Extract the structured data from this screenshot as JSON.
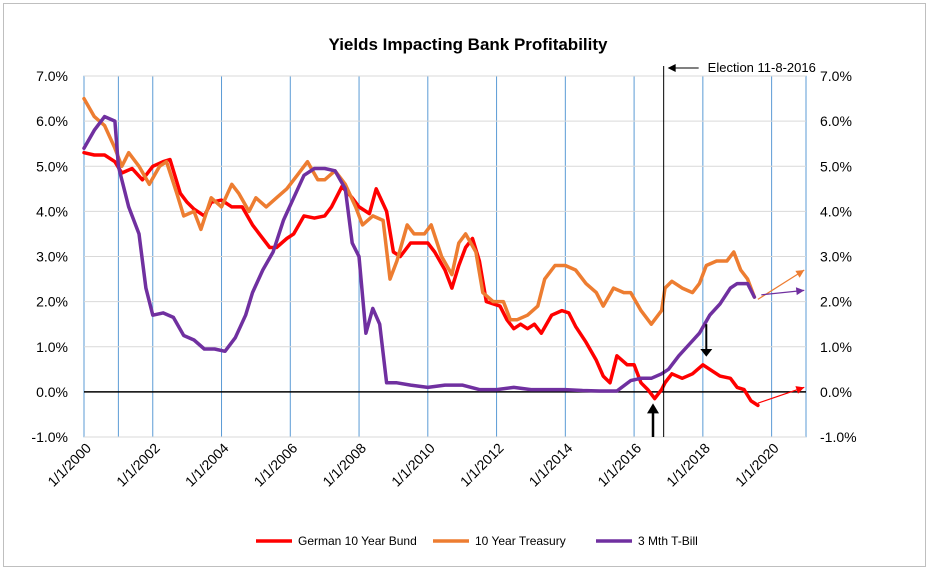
{
  "chart_data": {
    "type": "line",
    "title": "Yields Impacting Bank Profitability",
    "xlabel": "",
    "ylabel": "",
    "x_range": [
      "2000-01-01",
      "2021-01-01"
    ],
    "ylim": [
      -1.0,
      7.0
    ],
    "grid": true,
    "legend": "bottom",
    "x_tick_labels": [
      "1/1/2000",
      "1/1/2002",
      "1/1/2004",
      "1/1/2006",
      "1/1/2008",
      "1/1/2010",
      "1/1/2012",
      "1/1/2014",
      "1/1/2016",
      "1/1/2018",
      "1/1/2020"
    ],
    "x_tick_values": [
      2000,
      2002,
      2004,
      2006,
      2008,
      2010,
      2012,
      2014,
      2016,
      2018,
      2020
    ],
    "y_tick_labels": [
      "-1.0%",
      "0.0%",
      "1.0%",
      "2.0%",
      "3.0%",
      "4.0%",
      "5.0%",
      "6.0%",
      "7.0%"
    ],
    "y_tick_values": [
      -1,
      0,
      1,
      2,
      3,
      4,
      5,
      6,
      7
    ],
    "annotation": {
      "label": "Election 11-8-2016",
      "x": 2016.86
    },
    "series": [
      {
        "name": "German 10 Year Bund",
        "color": "#ff0000",
        "points": [
          [
            2000.0,
            5.3
          ],
          [
            2000.3,
            5.25
          ],
          [
            2000.6,
            5.25
          ],
          [
            2000.9,
            5.1
          ],
          [
            2001.1,
            4.85
          ],
          [
            2001.4,
            4.95
          ],
          [
            2001.7,
            4.7
          ],
          [
            2002.0,
            5.0
          ],
          [
            2002.3,
            5.1
          ],
          [
            2002.5,
            5.15
          ],
          [
            2002.8,
            4.4
          ],
          [
            2003.0,
            4.2
          ],
          [
            2003.2,
            4.05
          ],
          [
            2003.5,
            3.9
          ],
          [
            2003.7,
            4.2
          ],
          [
            2004.0,
            4.25
          ],
          [
            2004.3,
            4.1
          ],
          [
            2004.6,
            4.1
          ],
          [
            2004.9,
            3.7
          ],
          [
            2005.1,
            3.5
          ],
          [
            2005.4,
            3.2
          ],
          [
            2005.6,
            3.2
          ],
          [
            2005.9,
            3.4
          ],
          [
            2006.1,
            3.5
          ],
          [
            2006.4,
            3.9
          ],
          [
            2006.7,
            3.85
          ],
          [
            2007.0,
            3.9
          ],
          [
            2007.2,
            4.1
          ],
          [
            2007.5,
            4.55
          ],
          [
            2007.8,
            4.3
          ],
          [
            2008.0,
            4.1
          ],
          [
            2008.3,
            3.95
          ],
          [
            2008.5,
            4.5
          ],
          [
            2008.8,
            4.0
          ],
          [
            2009.0,
            3.1
          ],
          [
            2009.2,
            3.0
          ],
          [
            2009.5,
            3.3
          ],
          [
            2009.8,
            3.3
          ],
          [
            2010.0,
            3.3
          ],
          [
            2010.2,
            3.1
          ],
          [
            2010.5,
            2.7
          ],
          [
            2010.7,
            2.3
          ],
          [
            2010.9,
            2.8
          ],
          [
            2011.1,
            3.2
          ],
          [
            2011.3,
            3.4
          ],
          [
            2011.5,
            2.9
          ],
          [
            2011.7,
            2.0
          ],
          [
            2011.9,
            1.95
          ],
          [
            2012.1,
            1.9
          ],
          [
            2012.3,
            1.6
          ],
          [
            2012.5,
            1.4
          ],
          [
            2012.7,
            1.5
          ],
          [
            2012.9,
            1.4
          ],
          [
            2013.1,
            1.5
          ],
          [
            2013.3,
            1.3
          ],
          [
            2013.6,
            1.7
          ],
          [
            2013.9,
            1.8
          ],
          [
            2014.1,
            1.75
          ],
          [
            2014.3,
            1.45
          ],
          [
            2014.6,
            1.1
          ],
          [
            2014.9,
            0.7
          ],
          [
            2015.1,
            0.35
          ],
          [
            2015.3,
            0.2
          ],
          [
            2015.5,
            0.8
          ],
          [
            2015.8,
            0.6
          ],
          [
            2016.0,
            0.6
          ],
          [
            2016.2,
            0.2
          ],
          [
            2016.4,
            0.05
          ],
          [
            2016.6,
            -0.15
          ],
          [
            2016.8,
            0.05
          ],
          [
            2016.9,
            0.2
          ],
          [
            2017.1,
            0.4
          ],
          [
            2017.4,
            0.3
          ],
          [
            2017.7,
            0.4
          ],
          [
            2018.0,
            0.6
          ],
          [
            2018.2,
            0.5
          ],
          [
            2018.5,
            0.35
          ],
          [
            2018.8,
            0.3
          ],
          [
            2019.0,
            0.1
          ],
          [
            2019.2,
            0.05
          ],
          [
            2019.4,
            -0.2
          ],
          [
            2019.6,
            -0.3
          ]
        ]
      },
      {
        "name": "10 Year Treasury",
        "color": "#ed7d31",
        "points": [
          [
            2000.0,
            6.5
          ],
          [
            2000.3,
            6.1
          ],
          [
            2000.6,
            5.9
          ],
          [
            2000.9,
            5.4
          ],
          [
            2001.1,
            5.0
          ],
          [
            2001.3,
            5.3
          ],
          [
            2001.6,
            5.0
          ],
          [
            2001.9,
            4.6
          ],
          [
            2002.2,
            5.0
          ],
          [
            2002.4,
            5.1
          ],
          [
            2002.7,
            4.4
          ],
          [
            2002.9,
            3.9
          ],
          [
            2003.2,
            4.0
          ],
          [
            2003.4,
            3.6
          ],
          [
            2003.7,
            4.3
          ],
          [
            2004.0,
            4.1
          ],
          [
            2004.3,
            4.6
          ],
          [
            2004.5,
            4.4
          ],
          [
            2004.8,
            4.0
          ],
          [
            2005.0,
            4.3
          ],
          [
            2005.3,
            4.1
          ],
          [
            2005.6,
            4.3
          ],
          [
            2005.9,
            4.5
          ],
          [
            2006.2,
            4.8
          ],
          [
            2006.5,
            5.1
          ],
          [
            2006.8,
            4.7
          ],
          [
            2007.0,
            4.7
          ],
          [
            2007.3,
            4.9
          ],
          [
            2007.6,
            4.6
          ],
          [
            2007.9,
            4.1
          ],
          [
            2008.1,
            3.7
          ],
          [
            2008.4,
            3.9
          ],
          [
            2008.7,
            3.8
          ],
          [
            2008.9,
            2.5
          ],
          [
            2009.1,
            2.9
          ],
          [
            2009.4,
            3.7
          ],
          [
            2009.6,
            3.5
          ],
          [
            2009.9,
            3.5
          ],
          [
            2010.1,
            3.7
          ],
          [
            2010.4,
            3.0
          ],
          [
            2010.7,
            2.6
          ],
          [
            2010.9,
            3.3
          ],
          [
            2011.1,
            3.5
          ],
          [
            2011.4,
            3.1
          ],
          [
            2011.6,
            2.2
          ],
          [
            2011.9,
            2.0
          ],
          [
            2012.2,
            2.0
          ],
          [
            2012.4,
            1.6
          ],
          [
            2012.6,
            1.6
          ],
          [
            2012.9,
            1.7
          ],
          [
            2013.2,
            1.9
          ],
          [
            2013.4,
            2.5
          ],
          [
            2013.7,
            2.8
          ],
          [
            2014.0,
            2.8
          ],
          [
            2014.3,
            2.7
          ],
          [
            2014.6,
            2.4
          ],
          [
            2014.9,
            2.2
          ],
          [
            2015.1,
            1.9
          ],
          [
            2015.4,
            2.3
          ],
          [
            2015.7,
            2.2
          ],
          [
            2015.9,
            2.2
          ],
          [
            2016.2,
            1.8
          ],
          [
            2016.5,
            1.5
          ],
          [
            2016.8,
            1.8
          ],
          [
            2016.9,
            2.3
          ],
          [
            2017.1,
            2.45
          ],
          [
            2017.4,
            2.3
          ],
          [
            2017.7,
            2.2
          ],
          [
            2017.9,
            2.4
          ],
          [
            2018.1,
            2.8
          ],
          [
            2018.4,
            2.9
          ],
          [
            2018.7,
            2.9
          ],
          [
            2018.9,
            3.1
          ],
          [
            2019.1,
            2.7
          ],
          [
            2019.3,
            2.5
          ],
          [
            2019.5,
            2.1
          ]
        ]
      },
      {
        "name": "3 Mth T-Bill",
        "color": "#7030a0",
        "points": [
          [
            2000.0,
            5.4
          ],
          [
            2000.3,
            5.8
          ],
          [
            2000.6,
            6.1
          ],
          [
            2000.9,
            6.0
          ],
          [
            2001.0,
            5.0
          ],
          [
            2001.3,
            4.1
          ],
          [
            2001.6,
            3.5
          ],
          [
            2001.8,
            2.3
          ],
          [
            2002.0,
            1.7
          ],
          [
            2002.3,
            1.75
          ],
          [
            2002.6,
            1.65
          ],
          [
            2002.9,
            1.25
          ],
          [
            2003.2,
            1.15
          ],
          [
            2003.5,
            0.95
          ],
          [
            2003.8,
            0.95
          ],
          [
            2004.1,
            0.9
          ],
          [
            2004.4,
            1.2
          ],
          [
            2004.7,
            1.7
          ],
          [
            2004.9,
            2.2
          ],
          [
            2005.2,
            2.7
          ],
          [
            2005.5,
            3.1
          ],
          [
            2005.8,
            3.8
          ],
          [
            2006.1,
            4.3
          ],
          [
            2006.4,
            4.8
          ],
          [
            2006.7,
            4.95
          ],
          [
            2007.0,
            4.95
          ],
          [
            2007.3,
            4.9
          ],
          [
            2007.6,
            4.5
          ],
          [
            2007.8,
            3.3
          ],
          [
            2008.0,
            3.0
          ],
          [
            2008.2,
            1.3
          ],
          [
            2008.4,
            1.85
          ],
          [
            2008.6,
            1.5
          ],
          [
            2008.8,
            0.2
          ],
          [
            2009.1,
            0.2
          ],
          [
            2009.5,
            0.15
          ],
          [
            2010.0,
            0.1
          ],
          [
            2010.5,
            0.15
          ],
          [
            2011.0,
            0.15
          ],
          [
            2011.5,
            0.05
          ],
          [
            2012.0,
            0.05
          ],
          [
            2012.5,
            0.1
          ],
          [
            2013.0,
            0.05
          ],
          [
            2013.5,
            0.05
          ],
          [
            2014.0,
            0.05
          ],
          [
            2014.5,
            0.03
          ],
          [
            2015.0,
            0.02
          ],
          [
            2015.5,
            0.02
          ],
          [
            2015.9,
            0.25
          ],
          [
            2016.2,
            0.3
          ],
          [
            2016.5,
            0.3
          ],
          [
            2016.8,
            0.4
          ],
          [
            2017.0,
            0.5
          ],
          [
            2017.3,
            0.8
          ],
          [
            2017.6,
            1.05
          ],
          [
            2017.9,
            1.3
          ],
          [
            2018.2,
            1.7
          ],
          [
            2018.5,
            1.95
          ],
          [
            2018.8,
            2.3
          ],
          [
            2019.0,
            2.4
          ],
          [
            2019.3,
            2.4
          ],
          [
            2019.5,
            2.1
          ]
        ]
      }
    ]
  }
}
